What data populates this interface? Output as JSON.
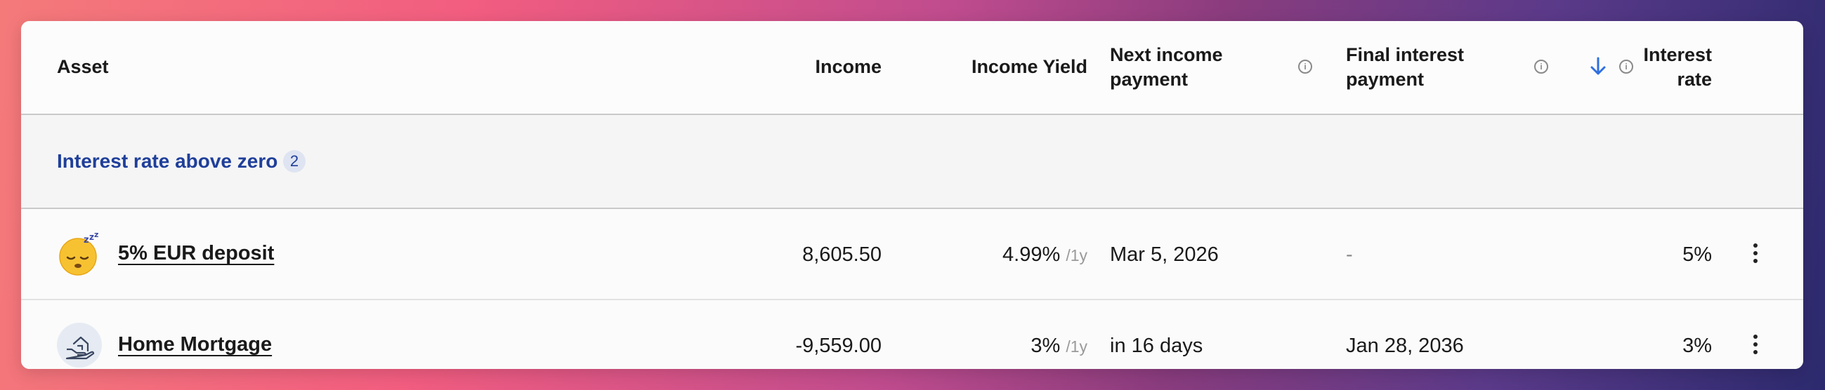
{
  "header": {
    "asset": "Asset",
    "income": "Income",
    "income_yield": "Income Yield",
    "next_income_line1": "Next income",
    "next_income_line2": "payment",
    "final_interest_line1": "Final interest",
    "final_interest_line2": "payment",
    "interest_rate_line1": "Interest",
    "interest_rate_line2": "rate",
    "sort_direction": "descending"
  },
  "group": {
    "title": "Interest rate above zero",
    "count": "2"
  },
  "rows": [
    {
      "icon": "sleepy-face-emoji-icon",
      "name": "5% EUR deposit",
      "income": "8,605.50",
      "yield": "4.99%",
      "yield_period": "/1y",
      "next_income": "Mar 5, 2026",
      "final_interest": "-",
      "interest_rate": "5%"
    },
    {
      "icon": "home-mortgage-icon",
      "name": "Home Mortgage",
      "income": "-9,559.00",
      "yield": "3%",
      "yield_period": "/1y",
      "next_income": "in 16 days",
      "final_interest": "Jan 28, 2036",
      "interest_rate": "3%"
    }
  ],
  "colors": {
    "group_title": "#1f3f9a",
    "sort_arrow": "#2f6fe0"
  }
}
